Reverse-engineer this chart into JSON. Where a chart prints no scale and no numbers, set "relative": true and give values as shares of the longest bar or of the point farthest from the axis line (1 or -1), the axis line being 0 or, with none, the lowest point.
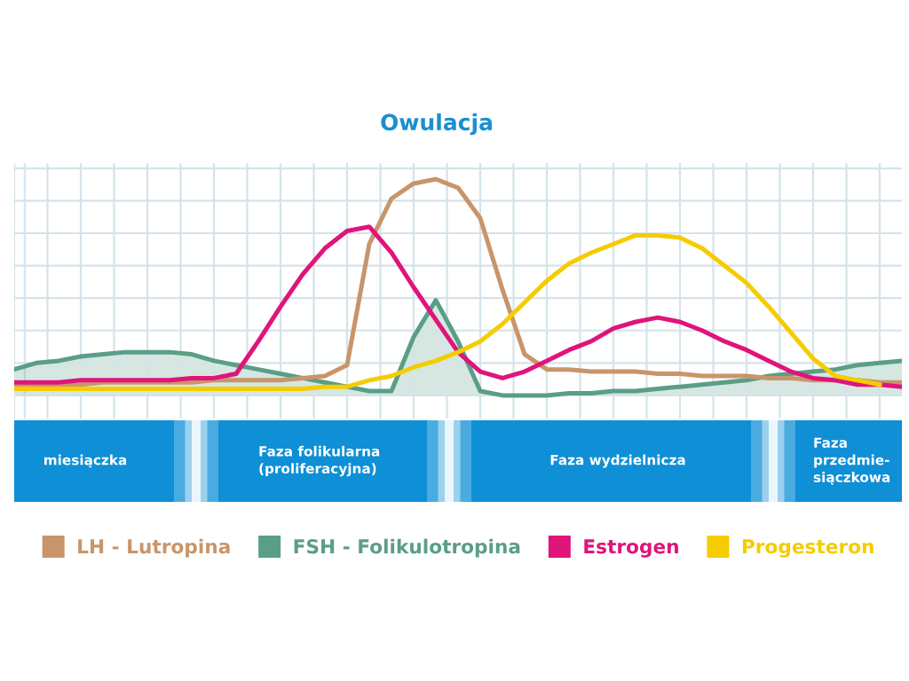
{
  "chart_data": {
    "type": "line",
    "title": "Owulacja",
    "relative": true,
    "grid": true,
    "legend": "bottom",
    "marker": "none",
    "line_style": "solid",
    "categories": [
      null,
      null,
      null,
      null,
      null,
      null,
      null,
      null,
      null,
      null,
      null,
      null,
      null,
      null,
      null,
      null,
      null,
      null,
      null,
      null,
      null,
      null,
      null,
      null,
      null,
      null,
      null,
      null,
      null,
      null,
      null,
      null,
      null,
      null,
      null,
      null,
      null,
      null,
      null,
      null,
      null
    ],
    "series": [
      {
        "name": "LH - Lutropina",
        "color": "#c8956a",
        "values": [
          0.05,
          0.05,
          0.05,
          0.05,
          0.06,
          0.06,
          0.06,
          0.06,
          0.06,
          0.07,
          0.07,
          0.07,
          0.07,
          0.08,
          0.09,
          0.14,
          0.7,
          0.91,
          0.98,
          1.0,
          0.96,
          0.82,
          0.49,
          0.19,
          0.12,
          0.12,
          0.11,
          0.11,
          0.11,
          0.1,
          0.1,
          0.09,
          0.09,
          0.09,
          0.08,
          0.08,
          0.07,
          0.07,
          0.07,
          0.06,
          0.06
        ]
      },
      {
        "name": "FSH - Folikulotropina",
        "type": "area",
        "color": "#5a9e86",
        "values": [
          0.12,
          0.15,
          0.16,
          0.18,
          0.19,
          0.2,
          0.2,
          0.2,
          0.19,
          0.16,
          0.14,
          0.12,
          0.1,
          0.08,
          0.06,
          0.04,
          0.02,
          0.02,
          0.27,
          0.44,
          0.25,
          0.02,
          0,
          0,
          0,
          0.01,
          0.01,
          0.02,
          0.02,
          0.03,
          0.04,
          0.05,
          0.06,
          0.07,
          0.09,
          0.1,
          0.11,
          0.12,
          0.14,
          0.15,
          0.16
        ]
      },
      {
        "name": "Estrogen",
        "color": "#e0147a",
        "values": [
          0.06,
          0.06,
          0.06,
          0.07,
          0.07,
          0.07,
          0.07,
          0.07,
          0.08,
          0.08,
          0.1,
          0.25,
          0.41,
          0.56,
          0.68,
          0.76,
          0.78,
          0.66,
          0.5,
          0.35,
          0.2,
          0.11,
          0.08,
          0.11,
          0.16,
          0.21,
          0.25,
          0.31,
          0.34,
          0.36,
          0.34,
          0.3,
          0.25,
          0.21,
          0.16,
          0.11,
          0.08,
          0.07,
          0.05,
          0.05,
          0.04
        ]
      },
      {
        "name": "Progesteron",
        "color": "#f5cc00",
        "values": [
          0.03,
          0.03,
          0.03,
          0.03,
          0.03,
          0.03,
          0.03,
          0.03,
          0.03,
          0.03,
          0.03,
          0.03,
          0.03,
          0.03,
          0.04,
          0.04,
          0.07,
          0.09,
          0.13,
          0.16,
          0.2,
          0.25,
          0.33,
          0.43,
          0.53,
          0.61,
          0.66,
          0.7,
          0.74,
          0.74,
          0.73,
          0.68,
          0.6,
          0.52,
          0.41,
          0.29,
          0.17,
          0.09,
          0.07,
          0.05,
          null
        ]
      }
    ],
    "annotations": [
      "miesiączka",
      "Faza folikularna\n(proliferacyjna)",
      "Faza wydzielnicza",
      "Faza\nprzedmie-\nsiączkowa"
    ]
  }
}
